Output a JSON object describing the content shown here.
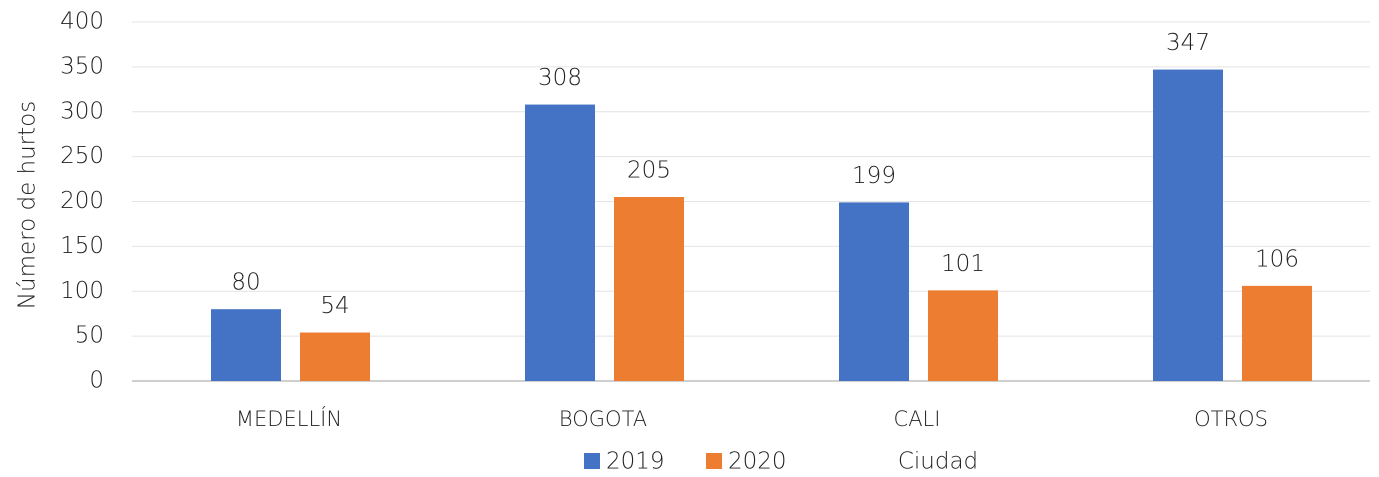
{
  "chart_data": {
    "type": "bar",
    "categories": [
      "MEDELLÍN",
      "BOGOTA",
      "CALI",
      "OTROS"
    ],
    "series": [
      {
        "name": "2019",
        "color": "#4472c4",
        "values": [
          80,
          308,
          199,
          347
        ]
      },
      {
        "name": "2020",
        "color": "#ed7d31",
        "values": [
          54,
          205,
          101,
          106
        ]
      }
    ],
    "x_label": "Ciudad",
    "y_label": "Número de hurtos",
    "ylim": [
      0,
      400
    ],
    "yticks": [
      0,
      50,
      100,
      150,
      200,
      250,
      300,
      350,
      400
    ],
    "grid": true,
    "legend": "bottom"
  }
}
